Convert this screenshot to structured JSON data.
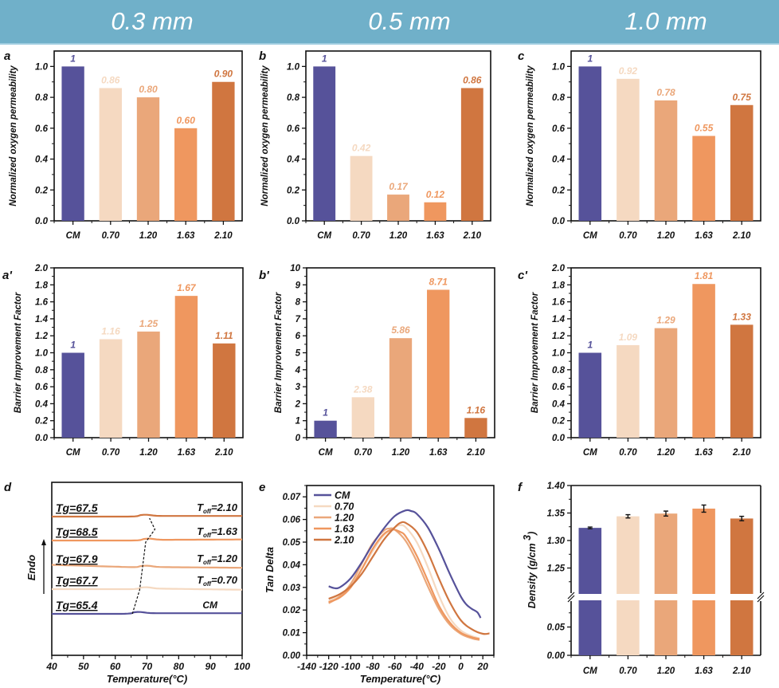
{
  "header": {
    "columns": [
      "0.3 mm",
      "0.5 mm",
      "1.0 mm"
    ],
    "background_color": "#70b0c9"
  },
  "colors": {
    "CM": "#56529a",
    "0.70": "#f5d9c1",
    "1.20": "#eaa77a",
    "1.63": "#ef975f",
    "2.10": "#d07640"
  },
  "chart_data": [
    {
      "id": "a",
      "panel_label": "a",
      "type": "bar",
      "title": "0.3 mm",
      "categories": [
        "CM",
        "0.70",
        "1.20",
        "1.63",
        "2.10"
      ],
      "values": [
        1,
        0.86,
        0.8,
        0.6,
        0.9
      ],
      "data_labels": [
        "1",
        "0.86",
        "0.80",
        "0.60",
        "0.90"
      ],
      "xlabel": "",
      "ylabel": "Normalized oxygen permeability",
      "ylim": [
        0,
        1.1
      ],
      "yticks": [
        "0.0",
        "0.2",
        "0.4",
        "0.6",
        "0.8",
        "1.0"
      ],
      "ytick_values": [
        0,
        0.2,
        0.4,
        0.6,
        0.8,
        1.0
      ],
      "grid": false
    },
    {
      "id": "b",
      "panel_label": "b",
      "type": "bar",
      "title": "0.5 mm",
      "categories": [
        "CM",
        "0.70",
        "1.20",
        "1.63",
        "2.10"
      ],
      "values": [
        1,
        0.42,
        0.17,
        0.12,
        0.86
      ],
      "data_labels": [
        "1",
        "0.42",
        "0.17",
        "0.12",
        "0.86"
      ],
      "xlabel": "",
      "ylabel": "Normalized oxygen permeability",
      "ylim": [
        0,
        1.1
      ],
      "yticks": [
        "0.0",
        "0.2",
        "0.4",
        "0.6",
        "0.8",
        "1.0"
      ],
      "ytick_values": [
        0,
        0.2,
        0.4,
        0.6,
        0.8,
        1.0
      ],
      "grid": false
    },
    {
      "id": "c",
      "panel_label": "c",
      "type": "bar",
      "title": "1.0 mm",
      "categories": [
        "CM",
        "0.70",
        "1.20",
        "1.63",
        "2.10"
      ],
      "values": [
        1,
        0.92,
        0.78,
        0.55,
        0.75
      ],
      "data_labels": [
        "1",
        "0.92",
        "0.78",
        "0.55",
        "0.75"
      ],
      "xlabel": "",
      "ylabel": "Normalized oxygen permeability",
      "ylim": [
        0,
        1.1
      ],
      "yticks": [
        "0.0",
        "0.2",
        "0.4",
        "0.6",
        "0.8",
        "1.0"
      ],
      "ytick_values": [
        0,
        0.2,
        0.4,
        0.6,
        0.8,
        1.0
      ],
      "grid": false
    },
    {
      "id": "a2",
      "panel_label": "a'",
      "type": "bar",
      "categories": [
        "CM",
        "0.70",
        "1.20",
        "1.63",
        "2.10"
      ],
      "values": [
        1,
        1.16,
        1.25,
        1.67,
        1.11
      ],
      "data_labels": [
        "1",
        "1.16",
        "1.25",
        "1.67",
        "1.11"
      ],
      "xlabel": "",
      "ylabel": "Barrier Improvement Factor",
      "ylim": [
        0,
        2.0
      ],
      "yticks": [
        "0.0",
        "0.2",
        "0.4",
        "0.6",
        "0.8",
        "1.0",
        "1.2",
        "1.4",
        "1.6",
        "1.8",
        "2.0"
      ],
      "ytick_values": [
        0,
        0.2,
        0.4,
        0.6,
        0.8,
        1.0,
        1.2,
        1.4,
        1.6,
        1.8,
        2.0
      ],
      "grid": false
    },
    {
      "id": "b2",
      "panel_label": "b'",
      "type": "bar",
      "categories": [
        "CM",
        "0.70",
        "1.20",
        "1.63",
        "2.10"
      ],
      "values": [
        1,
        2.38,
        5.86,
        8.71,
        1.16
      ],
      "data_labels": [
        "1",
        "2.38",
        "5.86",
        "8.71",
        "1.16"
      ],
      "xlabel": "",
      "ylabel": "Barrier Improvement Factor",
      "ylim": [
        0,
        10
      ],
      "yticks": [
        "0",
        "1",
        "2",
        "3",
        "4",
        "5",
        "6",
        "7",
        "8",
        "9",
        "10"
      ],
      "ytick_values": [
        0,
        1,
        2,
        3,
        4,
        5,
        6,
        7,
        8,
        9,
        10
      ],
      "grid": false
    },
    {
      "id": "c2",
      "panel_label": "c'",
      "type": "bar",
      "categories": [
        "CM",
        "0.70",
        "1.20",
        "1.63",
        "2.10"
      ],
      "values": [
        1,
        1.09,
        1.29,
        1.81,
        1.33
      ],
      "data_labels": [
        "1",
        "1.09",
        "1.29",
        "1.81",
        "1.33"
      ],
      "xlabel": "",
      "ylabel": "Barrier Improvement Factor",
      "ylim": [
        0,
        2.0
      ],
      "yticks": [
        "0.0",
        "0.2",
        "0.4",
        "0.6",
        "0.8",
        "1.0",
        "1.2",
        "1.4",
        "1.6",
        "1.8",
        "2.0"
      ],
      "ytick_values": [
        0,
        0.2,
        0.4,
        0.6,
        0.8,
        1.0,
        1.2,
        1.4,
        1.6,
        1.8,
        2.0
      ],
      "grid": false
    },
    {
      "id": "d",
      "panel_label": "d",
      "type": "line",
      "title": "DSC curves",
      "xlabel": "Temperature(°C)",
      "ylabel": "Endo",
      "xlim": [
        40,
        100
      ],
      "xticks": [
        "40",
        "50",
        "60",
        "70",
        "80",
        "90",
        "100"
      ],
      "xtick_values": [
        40,
        50,
        60,
        70,
        80,
        90,
        100
      ],
      "series": [
        {
          "name": "CM",
          "tg_label": "Tg=65.4",
          "curve_label": "CM",
          "tg": 65.4,
          "offset": 0,
          "start_shift": 0.0,
          "end_shift": 0.0
        },
        {
          "name": "0.70",
          "tg_label": "Tg=67.7",
          "curve_label_prefix": "T",
          "curve_label_sub": "off",
          "curve_label_suffix": "=0.70",
          "tg": 67.7,
          "offset": 1,
          "start_shift": 0.0,
          "end_shift": -0.15
        },
        {
          "name": "1.20",
          "tg_label": "Tg=67.9",
          "curve_label_prefix": "T",
          "curve_label_sub": "off",
          "curve_label_suffix": "=1.20",
          "tg": 67.9,
          "offset": 2,
          "start_shift": 0.35,
          "end_shift": -0.1
        },
        {
          "name": "1.63",
          "tg_label": "Tg=68.5",
          "curve_label_prefix": "T",
          "curve_label_sub": "off",
          "curve_label_suffix": "=1.63",
          "tg": 68.5,
          "offset": 3,
          "start_shift": 0.0,
          "end_shift": 0.05
        },
        {
          "name": "2.10",
          "tg_label": "Tg=67.5",
          "curve_label_prefix": "T",
          "curve_label_sub": "off",
          "curve_label_suffix": "=2.10",
          "tg": 67.5,
          "offset": 4,
          "start_shift": 0.0,
          "end_shift": 0.0
        }
      ],
      "grid": false
    },
    {
      "id": "e",
      "panel_label": "e",
      "type": "line",
      "xlabel": "Temperature(°C)",
      "ylabel": "Tan Delta",
      "xlim": [
        -140,
        30
      ],
      "ylim": [
        0,
        0.075
      ],
      "xticks": [
        "-140",
        "-120",
        "-100",
        "-80",
        "-60",
        "-40",
        "-20",
        "0",
        "20"
      ],
      "xtick_values": [
        -140,
        -120,
        -100,
        -80,
        -60,
        -40,
        -20,
        0,
        20
      ],
      "yticks": [
        "0.00",
        "0.01",
        "0.02",
        "0.03",
        "0.04",
        "0.05",
        "0.06",
        "0.07"
      ],
      "ytick_values": [
        0,
        0.01,
        0.02,
        0.03,
        0.04,
        0.05,
        0.06,
        0.07
      ],
      "legend_position": "top-left",
      "series": [
        {
          "name": "CM",
          "x": [
            -120,
            -115,
            -110,
            -100,
            -90,
            -80,
            -70,
            -60,
            -50,
            -45,
            -40,
            -30,
            -20,
            -10,
            0,
            5,
            10,
            15,
            18
          ],
          "y": [
            0.0305,
            0.0297,
            0.03,
            0.034,
            0.041,
            0.049,
            0.056,
            0.0615,
            0.064,
            0.0637,
            0.0625,
            0.0565,
            0.047,
            0.036,
            0.026,
            0.0225,
            0.0205,
            0.019,
            0.0165
          ]
        },
        {
          "name": "0.70",
          "x": [
            -120,
            -110,
            -100,
            -90,
            -80,
            -70,
            -60,
            -55,
            -50,
            -40,
            -30,
            -20,
            -10,
            0,
            10,
            17
          ],
          "y": [
            0.024,
            0.0265,
            0.031,
            0.038,
            0.046,
            0.053,
            0.0565,
            0.0575,
            0.0565,
            0.05,
            0.039,
            0.0265,
            0.0165,
            0.011,
            0.0085,
            0.0075
          ]
        },
        {
          "name": "1.20",
          "x": [
            -120,
            -110,
            -100,
            -90,
            -80,
            -70,
            -65,
            -60,
            -50,
            -40,
            -30,
            -20,
            -10,
            0,
            10,
            17
          ],
          "y": [
            0.023,
            0.026,
            0.0315,
            0.0405,
            0.0495,
            0.055,
            0.056,
            0.0555,
            0.0505,
            0.0415,
            0.0305,
            0.0205,
            0.0135,
            0.0095,
            0.0075,
            0.0068
          ]
        },
        {
          "name": "1.63",
          "x": [
            -120,
            -110,
            -100,
            -90,
            -80,
            -70,
            -62,
            -55,
            -50,
            -40,
            -30,
            -20,
            -10,
            0,
            10,
            17
          ],
          "y": [
            0.0235,
            0.0255,
            0.03,
            0.038,
            0.047,
            0.0535,
            0.0555,
            0.0545,
            0.0525,
            0.044,
            0.033,
            0.022,
            0.0145,
            0.01,
            0.008,
            0.0072
          ]
        },
        {
          "name": "2.10",
          "x": [
            -120,
            -110,
            -100,
            -90,
            -80,
            -70,
            -60,
            -55,
            -50,
            -40,
            -30,
            -20,
            -10,
            0,
            10,
            20,
            26
          ],
          "y": [
            0.025,
            0.027,
            0.0305,
            0.036,
            0.0435,
            0.051,
            0.0565,
            0.0585,
            0.0585,
            0.0545,
            0.0455,
            0.034,
            0.0235,
            0.0155,
            0.0115,
            0.0095,
            0.0097
          ]
        }
      ],
      "grid": false
    },
    {
      "id": "f",
      "panel_label": "f",
      "type": "bar",
      "categories": [
        "CM",
        "0.70",
        "1.20",
        "1.63",
        "2.10"
      ],
      "values": [
        1.323,
        1.344,
        1.349,
        1.358,
        1.34
      ],
      "errors": [
        0.0015,
        0.003,
        0.0045,
        0.0065,
        0.004
      ],
      "xlabel": "",
      "ylabel": "Density  (g/cm",
      "ylabel_superscript": "3",
      "ylabel_suffix": ")",
      "axis_break": true,
      "lower_range": [
        0,
        0.1
      ],
      "upper_range": [
        1.2,
        1.4
      ],
      "yticks_lower": [
        "0.00",
        "0.05"
      ],
      "ytick_values_lower": [
        0,
        0.05
      ],
      "yticks_upper": [
        "1.25",
        "1.30",
        "1.35",
        "1.40"
      ],
      "ytick_values_upper": [
        1.25,
        1.3,
        1.35,
        1.4
      ],
      "grid": false
    }
  ]
}
